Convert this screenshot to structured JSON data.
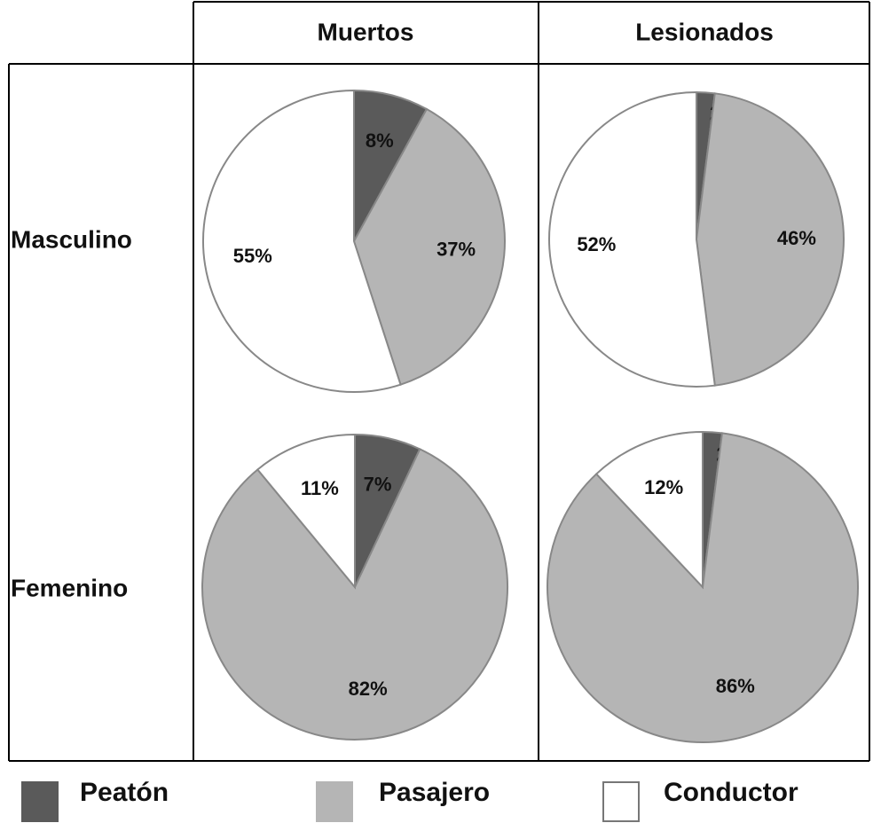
{
  "columns": [
    "Muertos",
    "Lesionados"
  ],
  "rows": [
    "Masculino",
    "Femenino"
  ],
  "legend": {
    "categories": [
      "Peatón",
      "Pasajero",
      "Conductor"
    ],
    "colors": [
      "#5a5a5a",
      "#b5b5b5",
      "#ffffff"
    ]
  },
  "chart_data": [
    {
      "type": "pie",
      "values": [
        8,
        37,
        55
      ],
      "value_labels": [
        "8%",
        "37%",
        "55%"
      ]
    },
    {
      "type": "pie",
      "values": [
        2,
        46,
        52
      ],
      "value_labels": [
        "2%",
        "46%",
        "52%"
      ]
    },
    {
      "type": "pie",
      "values": [
        7,
        82,
        11
      ],
      "value_labels": [
        "7%",
        "82%",
        "11%"
      ]
    },
    {
      "type": "pie",
      "values": [
        2,
        86,
        12
      ],
      "value_labels": [
        "2%",
        "86%",
        "12%"
      ]
    }
  ]
}
